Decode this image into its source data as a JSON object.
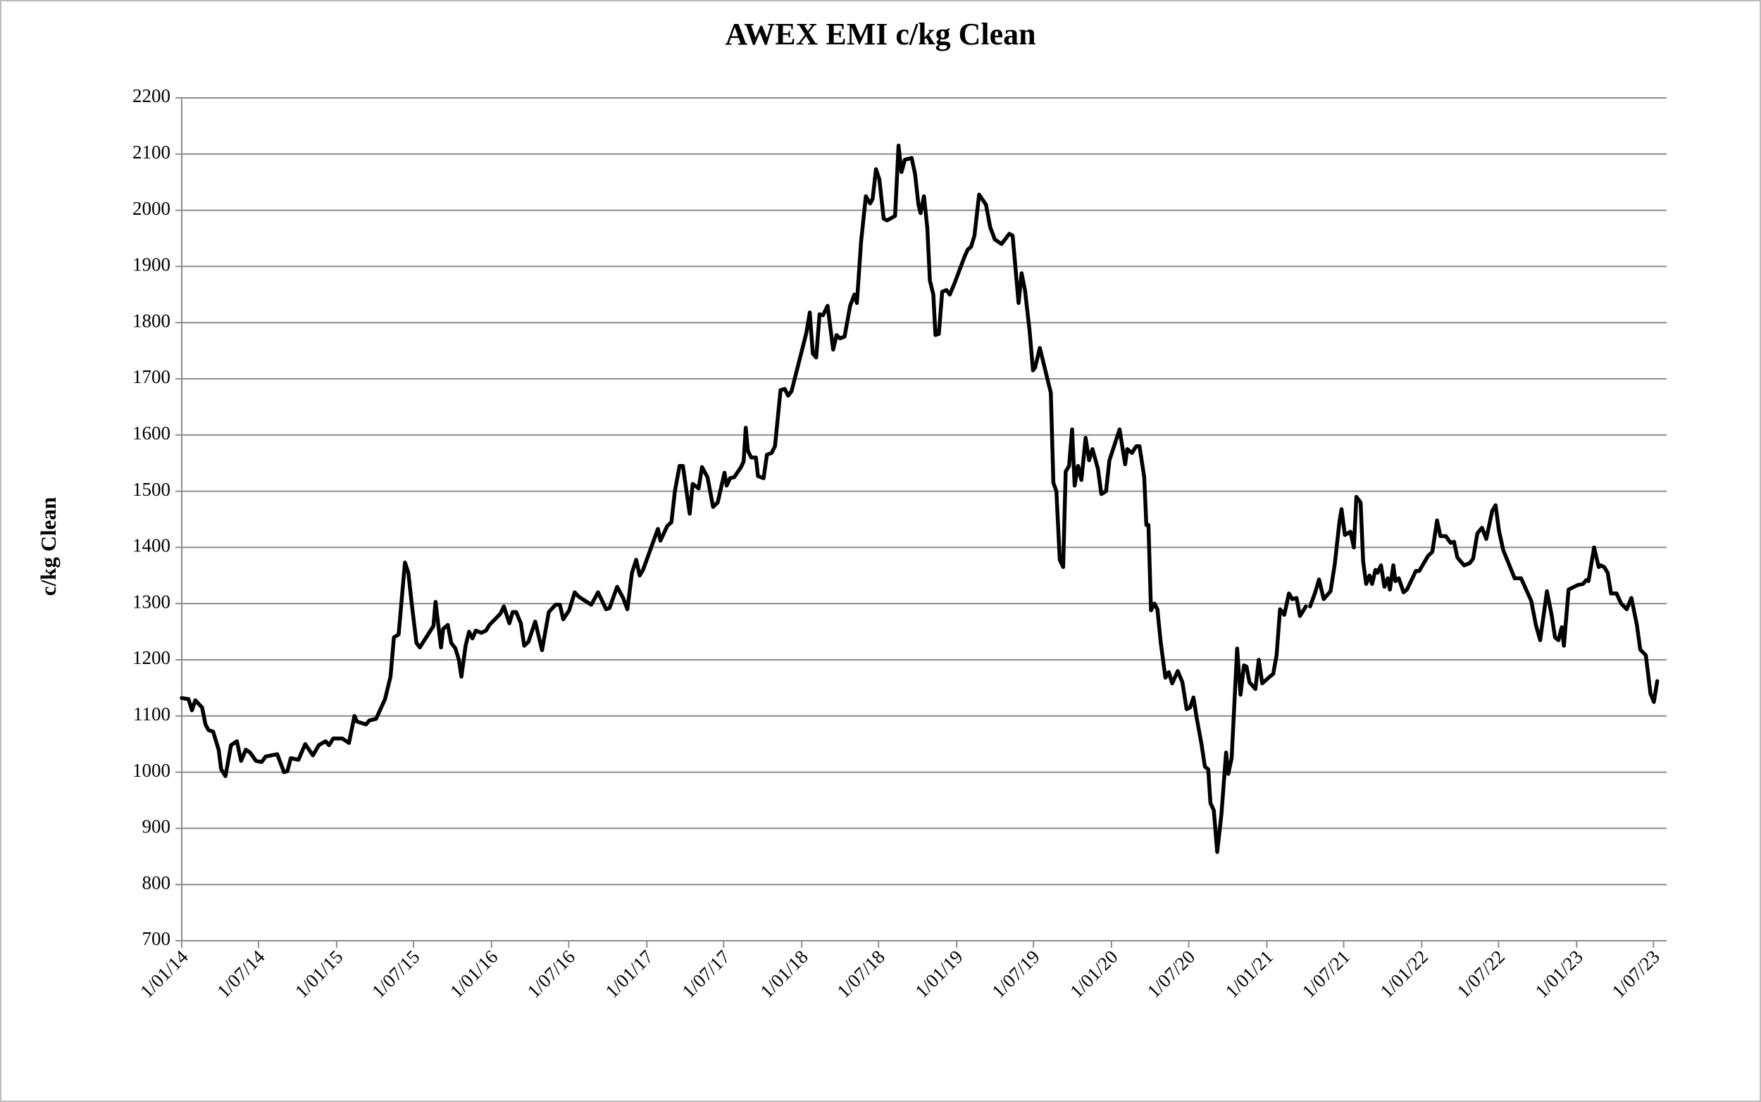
{
  "chart_data": {
    "type": "line",
    "title": "AWEX EMI c/kg Clean",
    "y_label": "c/kg Clean",
    "color": "#000000",
    "grid": true,
    "xlim": [
      "2014-01-01",
      "2023-08-01"
    ],
    "xticks": [
      {
        "value": "2014-01-01",
        "label": "1/01/14"
      },
      {
        "value": "2014-07-01",
        "label": "1/07/14"
      },
      {
        "value": "2015-01-01",
        "label": "1/01/15"
      },
      {
        "value": "2015-07-01",
        "label": "1/07/15"
      },
      {
        "value": "2016-01-01",
        "label": "1/01/16"
      },
      {
        "value": "2016-07-01",
        "label": "1/07/16"
      },
      {
        "value": "2017-01-01",
        "label": "1/01/17"
      },
      {
        "value": "2017-07-01",
        "label": "1/07/17"
      },
      {
        "value": "2018-01-01",
        "label": "1/01/18"
      },
      {
        "value": "2018-07-01",
        "label": "1/07/18"
      },
      {
        "value": "2019-01-01",
        "label": "1/01/19"
      },
      {
        "value": "2019-07-01",
        "label": "1/07/19"
      },
      {
        "value": "2020-01-01",
        "label": "1/01/20"
      },
      {
        "value": "2020-07-01",
        "label": "1/07/20"
      },
      {
        "value": "2021-01-01",
        "label": "1/01/21"
      },
      {
        "value": "2021-07-01",
        "label": "1/07/21"
      },
      {
        "value": "2022-01-01",
        "label": "1/01/22"
      },
      {
        "value": "2022-07-01",
        "label": "1/07/22"
      },
      {
        "value": "2023-01-01",
        "label": "1/01/23"
      },
      {
        "value": "2023-07-01",
        "label": "1/07/23"
      }
    ],
    "ylim": [
      700,
      2200
    ],
    "yticks": [
      700,
      800,
      900,
      1000,
      1100,
      1200,
      1300,
      1400,
      1500,
      1600,
      1700,
      1800,
      1900,
      2000,
      2100,
      2200
    ],
    "x": [
      "2014-01-01",
      "2014-01-17",
      "2014-01-25",
      "2014-02-02",
      "2014-02-18",
      "2014-02-26",
      "2014-03-05",
      "2014-03-16",
      "2014-03-29",
      "2014-04-04",
      "2014-04-14",
      "2014-04-27",
      "2014-05-11",
      "2014-05-21",
      "2014-06-01",
      "2014-06-11",
      "2014-06-25",
      "2014-07-08",
      "2014-07-18",
      "2014-08-14",
      "2014-08-30",
      "2014-09-07",
      "2014-09-15",
      "2014-10-03",
      "2014-10-19",
      "2014-11-06",
      "2014-11-20",
      "2014-12-06",
      "2014-12-14",
      "2014-12-24",
      "2015-01-14",
      "2015-01-30",
      "2015-02-12",
      "2015-02-18",
      "2015-03-11",
      "2015-03-19",
      "2015-04-04",
      "2015-04-25",
      "2015-05-08",
      "2015-05-16",
      "2015-05-27",
      "2015-06-11",
      "2015-06-19",
      "2015-06-27",
      "2015-07-08",
      "2015-07-16",
      "2015-08-17",
      "2015-08-22",
      "2015-09-04",
      "2015-09-09",
      "2015-09-20",
      "2015-09-28",
      "2015-10-08",
      "2015-10-16",
      "2015-10-22",
      "2015-11-01",
      "2015-11-09",
      "2015-11-17",
      "2015-11-25",
      "2015-12-08",
      "2015-12-19",
      "2015-12-27",
      "2016-01-22",
      "2016-01-30",
      "2016-02-12",
      "2016-02-20",
      "2016-02-28",
      "2016-03-10",
      "2016-03-18",
      "2016-03-28",
      "2016-04-13",
      "2016-04-29",
      "2016-05-15",
      "2016-05-31",
      "2016-06-10",
      "2016-06-18",
      "2016-07-02",
      "2016-07-15",
      "2016-07-25",
      "2016-08-23",
      "2016-09-08",
      "2016-09-27",
      "2016-10-05",
      "2016-10-23",
      "2016-11-06",
      "2016-11-16",
      "2016-11-27",
      "2016-12-07",
      "2016-12-15",
      "2016-12-23",
      "2017-01-27",
      "2017-02-02",
      "2017-02-18",
      "2017-02-28",
      "2017-03-08",
      "2017-03-19",
      "2017-03-27",
      "2017-04-12",
      "2017-04-19",
      "2017-05-03",
      "2017-05-11",
      "2017-05-24",
      "2017-06-06",
      "2017-06-17",
      "2017-07-03",
      "2017-07-08",
      "2017-07-16",
      "2017-07-26",
      "2017-08-11",
      "2017-08-17",
      "2017-08-22",
      "2017-08-27",
      "2017-09-04",
      "2017-09-15",
      "2017-09-20",
      "2017-10-03",
      "2017-10-11",
      "2017-10-22",
      "2017-10-30",
      "2017-11-12",
      "2017-11-22",
      "2017-11-30",
      "2017-12-08",
      "2018-01-12",
      "2018-01-20",
      "2018-01-27",
      "2018-02-04",
      "2018-02-12",
      "2018-02-20",
      "2018-03-03",
      "2018-03-16",
      "2018-03-24",
      "2018-04-01",
      "2018-04-12",
      "2018-04-25",
      "2018-05-05",
      "2018-05-11",
      "2018-05-21",
      "2018-06-01",
      "2018-06-11",
      "2018-06-17",
      "2018-06-25",
      "2018-07-03",
      "2018-07-13",
      "2018-07-21",
      "2018-08-09",
      "2018-08-17",
      "2018-08-24",
      "2018-09-01",
      "2018-09-17",
      "2018-09-25",
      "2018-10-03",
      "2018-10-08",
      "2018-10-16",
      "2018-10-24",
      "2018-10-30",
      "2018-11-07",
      "2018-11-12",
      "2018-11-20",
      "2018-11-28",
      "2018-12-08",
      "2018-12-16",
      "2018-12-27",
      "2019-01-20",
      "2019-01-27",
      "2019-02-04",
      "2019-02-12",
      "2019-02-23",
      "2019-03-11",
      "2019-03-21",
      "2019-04-01",
      "2019-04-17",
      "2019-05-05",
      "2019-05-13",
      "2019-05-27",
      "2019-06-03",
      "2019-06-11",
      "2019-06-22",
      "2019-06-30",
      "2019-07-05",
      "2019-07-16",
      "2019-08-11",
      "2019-08-17",
      "2019-08-24",
      "2019-09-01",
      "2019-09-09",
      "2019-09-15",
      "2019-09-23",
      "2019-09-30",
      "2019-10-06",
      "2019-10-14",
      "2019-10-22",
      "2019-11-01",
      "2019-11-09",
      "2019-11-17",
      "2019-11-30",
      "2019-12-08",
      "2019-12-19",
      "2019-12-27",
      "2020-01-20",
      "2020-02-02",
      "2020-02-07",
      "2020-02-18",
      "2020-02-28",
      "2020-03-07",
      "2020-03-18",
      "2020-03-23",
      "2020-03-28",
      "2020-04-03",
      "2020-04-11",
      "2020-04-18",
      "2020-04-26",
      "2020-05-07",
      "2020-05-15",
      "2020-05-23",
      "2020-06-05",
      "2020-06-16",
      "2020-06-26",
      "2020-07-04",
      "2020-07-12",
      "2020-07-20",
      "2020-07-31",
      "2020-08-08",
      "2020-08-16",
      "2020-08-21",
      "2020-08-29",
      "2020-09-06",
      "2020-09-16",
      "2020-09-27",
      "2020-10-02",
      "2020-10-10",
      "2020-10-23",
      "2020-10-31",
      "2020-11-08",
      "2020-11-14",
      "2020-11-21",
      "2020-12-05",
      "2020-12-13",
      "2020-12-21",
      "2021-01-08",
      "2021-01-16",
      "2021-01-24",
      "2021-02-01",
      "2021-02-11",
      "2021-02-22",
      "2021-03-02",
      "2021-03-12",
      "2021-03-20",
      "2021-04-03",
      "2021-04-08",
      "2021-04-13",
      "2021-04-24",
      "2021-05-04",
      "2021-05-15",
      "2021-05-31",
      "2021-06-10",
      "2021-06-21",
      "2021-06-26",
      "2021-07-04",
      "2021-07-17",
      "2021-07-25",
      "2021-07-31",
      "2021-08-10",
      "2021-08-16",
      "2021-08-23",
      "2021-08-31",
      "2021-09-06",
      "2021-09-14",
      "2021-09-19",
      "2021-09-27",
      "2021-10-05",
      "2021-10-13",
      "2021-10-18",
      "2021-10-26",
      "2021-10-31",
      "2021-11-08",
      "2021-11-19",
      "2021-11-27",
      "2021-12-10",
      "2021-12-18",
      "2021-12-26",
      "2022-01-16",
      "2022-01-26",
      "2022-02-06",
      "2022-02-14",
      "2022-02-27",
      "2022-03-10",
      "2022-03-18",
      "2022-03-26",
      "2022-04-11",
      "2022-04-24",
      "2022-05-02",
      "2022-05-12",
      "2022-05-23",
      "2022-06-02",
      "2022-06-16",
      "2022-06-24",
      "2022-07-02",
      "2022-07-12",
      "2022-08-08",
      "2022-08-23",
      "2022-09-16",
      "2022-09-27",
      "2022-10-07",
      "2022-10-23",
      "2022-11-03",
      "2022-11-11",
      "2022-11-19",
      "2022-11-27",
      "2022-12-02",
      "2022-12-13",
      "2023-01-03",
      "2023-01-16",
      "2023-01-24",
      "2023-01-29",
      "2023-02-11",
      "2023-02-22",
      "2023-02-27",
      "2023-03-07",
      "2023-03-15",
      "2023-03-23",
      "2023-04-05",
      "2023-04-16",
      "2023-04-29",
      "2023-05-10",
      "2023-05-23",
      "2023-05-31",
      "2023-06-13",
      "2023-06-24",
      "2023-07-02",
      "2023-07-10"
    ],
    "values": [
      1132,
      1130,
      1110,
      1128,
      1115,
      1085,
      1075,
      1072,
      1040,
      1005,
      993,
      1048,
      1055,
      1020,
      1040,
      1035,
      1020,
      1018,
      1028,
      1032,
      1000,
      1002,
      1025,
      1022,
      1050,
      1030,
      1048,
      1055,
      1048,
      1060,
      1060,
      1052,
      1100,
      1090,
      1085,
      1092,
      1095,
      1130,
      1170,
      1240,
      1245,
      1373,
      1355,
      1300,
      1230,
      1222,
      1260,
      1303,
      1222,
      1255,
      1262,
      1230,
      1220,
      1200,
      1170,
      1225,
      1250,
      1238,
      1252,
      1248,
      1252,
      1262,
      1282,
      1295,
      1265,
      1285,
      1285,
      1265,
      1225,
      1232,
      1268,
      1217,
      1285,
      1298,
      1298,
      1272,
      1288,
      1320,
      1312,
      1298,
      1320,
      1290,
      1292,
      1330,
      1310,
      1290,
      1355,
      1378,
      1350,
      1360,
      1433,
      1412,
      1438,
      1445,
      1500,
      1545,
      1545,
      1460,
      1513,
      1505,
      1543,
      1525,
      1472,
      1480,
      1533,
      1510,
      1523,
      1525,
      1543,
      1553,
      1613,
      1572,
      1560,
      1560,
      1527,
      1523,
      1565,
      1568,
      1580,
      1680,
      1682,
      1670,
      1678,
      1782,
      1818,
      1745,
      1738,
      1815,
      1813,
      1830,
      1752,
      1778,
      1772,
      1775,
      1830,
      1850,
      1835,
      1945,
      2025,
      2012,
      2020,
      2073,
      2055,
      1985,
      1982,
      1990,
      2115,
      2068,
      2090,
      2093,
      2065,
      2010,
      1995,
      2025,
      1968,
      1875,
      1850,
      1778,
      1780,
      1855,
      1858,
      1850,
      1870,
      1918,
      1930,
      1935,
      1955,
      2028,
      2010,
      1970,
      1948,
      1940,
      1958,
      1955,
      1835,
      1888,
      1858,
      1785,
      1715,
      1720,
      1755,
      1675,
      1515,
      1500,
      1378,
      1365,
      1535,
      1545,
      1610,
      1510,
      1545,
      1520,
      1595,
      1555,
      1575,
      1540,
      1495,
      1500,
      1555,
      1610,
      1548,
      1575,
      1568,
      1580,
      1580,
      1525,
      1440,
      1440,
      1288,
      1300,
      1290,
      1230,
      1168,
      1178,
      1158,
      1180,
      1160,
      1112,
      1115,
      1133,
      1095,
      1050,
      1010,
      1005,
      945,
      932,
      858,
      925,
      1035,
      997,
      1025,
      1220,
      1138,
      1190,
      1188,
      1160,
      1148,
      1200,
      1158,
      1170,
      1175,
      1208,
      1290,
      1280,
      1318,
      1308,
      1310,
      1278,
      1295,
      null,
      1295,
      1318,
      1343,
      1308,
      1322,
      1370,
      1445,
      1468,
      1422,
      1428,
      1400,
      1490,
      1480,
      1375,
      1335,
      1350,
      1335,
      1360,
      1355,
      1368,
      1330,
      1345,
      1325,
      1368,
      1340,
      1345,
      1320,
      1325,
      1345,
      1358,
      1358,
      1385,
      1392,
      1448,
      1420,
      1420,
      1408,
      1410,
      1382,
      1368,
      1372,
      1380,
      1425,
      1435,
      1415,
      1465,
      1475,
      1430,
      1395,
      1345,
      1345,
      1305,
      1262,
      1235,
      1322,
      1280,
      1240,
      1235,
      1258,
      1225,
      1325,
      1333,
      1335,
      1342,
      1340,
      1400,
      1365,
      1368,
      1365,
      1355,
      1318,
      1318,
      1300,
      1290,
      1310,
      1262,
      1218,
      1208,
      1140,
      1125,
      1162
    ]
  }
}
